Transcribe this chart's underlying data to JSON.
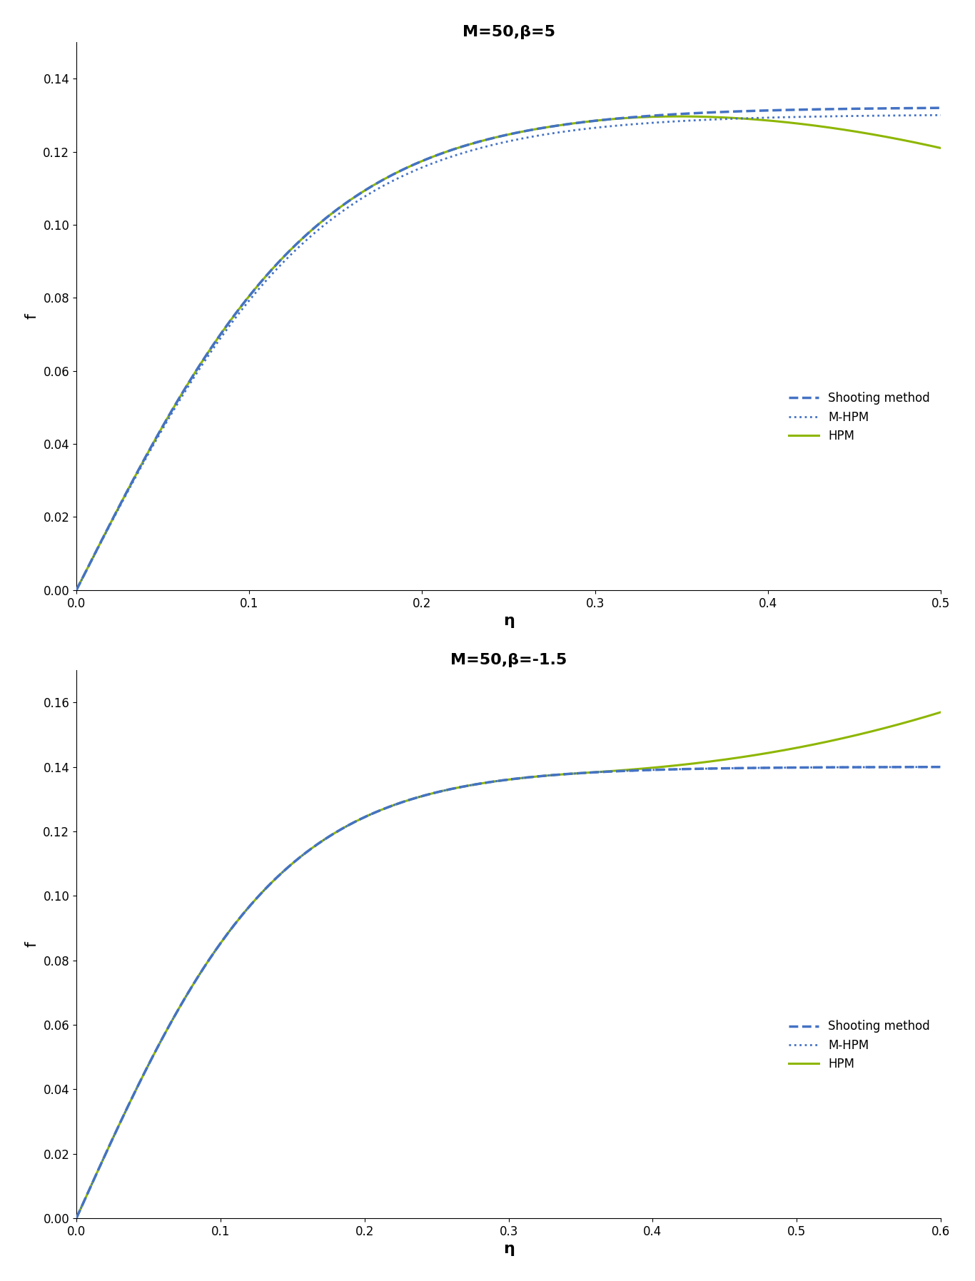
{
  "plot1": {
    "title": "M=50,β=5",
    "xlim": [
      0,
      0.5
    ],
    "ylim": [
      0,
      0.15
    ],
    "xticks": [
      0,
      0.1,
      0.2,
      0.3,
      0.4,
      0.5
    ],
    "yticks": [
      0,
      0.02,
      0.04,
      0.06,
      0.08,
      0.1,
      0.12,
      0.14
    ],
    "xlabel": "η",
    "ylabel": "f"
  },
  "plot2": {
    "title": "M=50,β=-1.5",
    "xlim": [
      0,
      0.6
    ],
    "ylim": [
      0,
      0.17
    ],
    "xticks": [
      0,
      0.1,
      0.2,
      0.3,
      0.4,
      0.5,
      0.6
    ],
    "yticks": [
      0,
      0.02,
      0.04,
      0.06,
      0.08,
      0.1,
      0.12,
      0.14,
      0.16
    ],
    "xlabel": "η",
    "ylabel": "f"
  },
  "hpm_color": "#8db600",
  "mhpm_color": "#4472c4",
  "shooting_color": "#4472c4",
  "legend_labels": [
    "HPM",
    "M-HPM",
    "Shooting method"
  ],
  "title_fontsize": 16,
  "label_fontsize": 14,
  "tick_fontsize": 12
}
